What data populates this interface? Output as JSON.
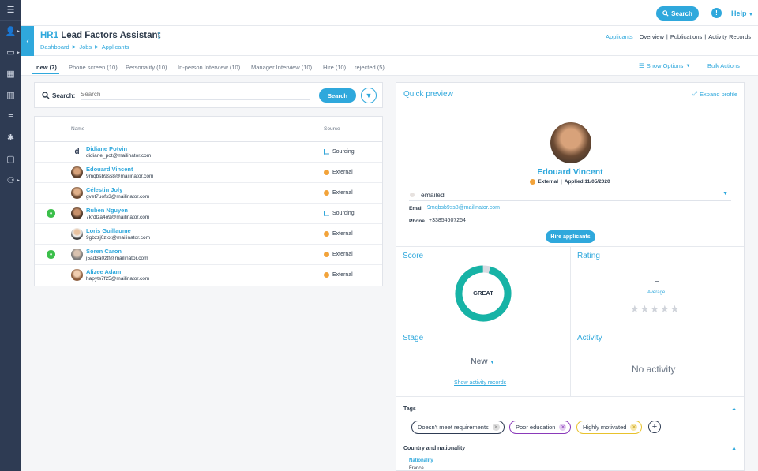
{
  "topbar": {
    "search_label": "Search",
    "help_label": "Help"
  },
  "header": {
    "title_prefix": "HR1",
    "title": "Lead Factors Assistant",
    "breadcrumb": [
      "Dashboard",
      "Jobs",
      "Applicants"
    ],
    "links": [
      "Applicants",
      "Overview",
      "Publications",
      "Activity Records"
    ]
  },
  "tabs": [
    "new (7)",
    "Phone screen (10)",
    "Personality (10)",
    "In-person Interview (10)",
    "Manager Interview (10)",
    "Hire (10)",
    "rejected (5)"
  ],
  "toolbar": {
    "show_options": "Show Options",
    "bulk_actions": "Bulk Actions"
  },
  "search": {
    "label": "Search:",
    "placeholder": "Search",
    "button": "Search"
  },
  "table": {
    "headers": {
      "name": "Name",
      "source": "Source"
    },
    "rows": [
      {
        "name": "Didiane Potvin",
        "email": "didiane_pot@mailinator.com",
        "source": "Sourcing"
      },
      {
        "name": "Edouard Vincent",
        "email": "9mqbsb9ss8@mailinator.com",
        "source": "External"
      },
      {
        "name": "Célestin Joly",
        "email": "gvet7uofs3@mailinator.com",
        "source": "External"
      },
      {
        "name": "Ruben Nguyen",
        "email": "7krdlza4o9@mailinator.com",
        "source": "Sourcing"
      },
      {
        "name": "Loris Guillaume",
        "email": "9gbzzj0zlot@mailinator.com",
        "source": "External"
      },
      {
        "name": "Soren Caron",
        "email": "j5ad3a0ztf@mailinator.com",
        "source": "External"
      },
      {
        "name": "Alizee Adam",
        "email": "hapyts7f25@mailinator.com",
        "source": "External"
      }
    ]
  },
  "preview": {
    "title": "Quick preview",
    "expand": "Expand profile",
    "name": "Edouard Vincent",
    "source": "External",
    "applied": "Applied 11/05/2020",
    "status": "emailed",
    "email_label": "Email",
    "email": "9mqbsb9ss8@mailinator.com",
    "phone_label": "Phone",
    "phone": "+33854607254",
    "hire_button": "Hire applicants",
    "score_title": "Score",
    "score_label": "GREAT",
    "rating_title": "Rating",
    "rating_value": "–",
    "rating_average": "Average",
    "stars": "★★★★★",
    "stage_title": "Stage",
    "stage_value": "New",
    "stage_link": "Show activity records",
    "activity_title": "Activity",
    "activity_value": "No activity",
    "tags_title": "Tags",
    "tags": [
      "Doesn't meet requirements",
      "Poor education",
      "Highly motivated"
    ],
    "country_title": "Country and nationality",
    "nationality_label": "Nationality",
    "nationality": "France"
  },
  "colors": {
    "accent": "#2fa8dc",
    "sidebar": "#2e3b53",
    "score": "#17b3a6"
  }
}
